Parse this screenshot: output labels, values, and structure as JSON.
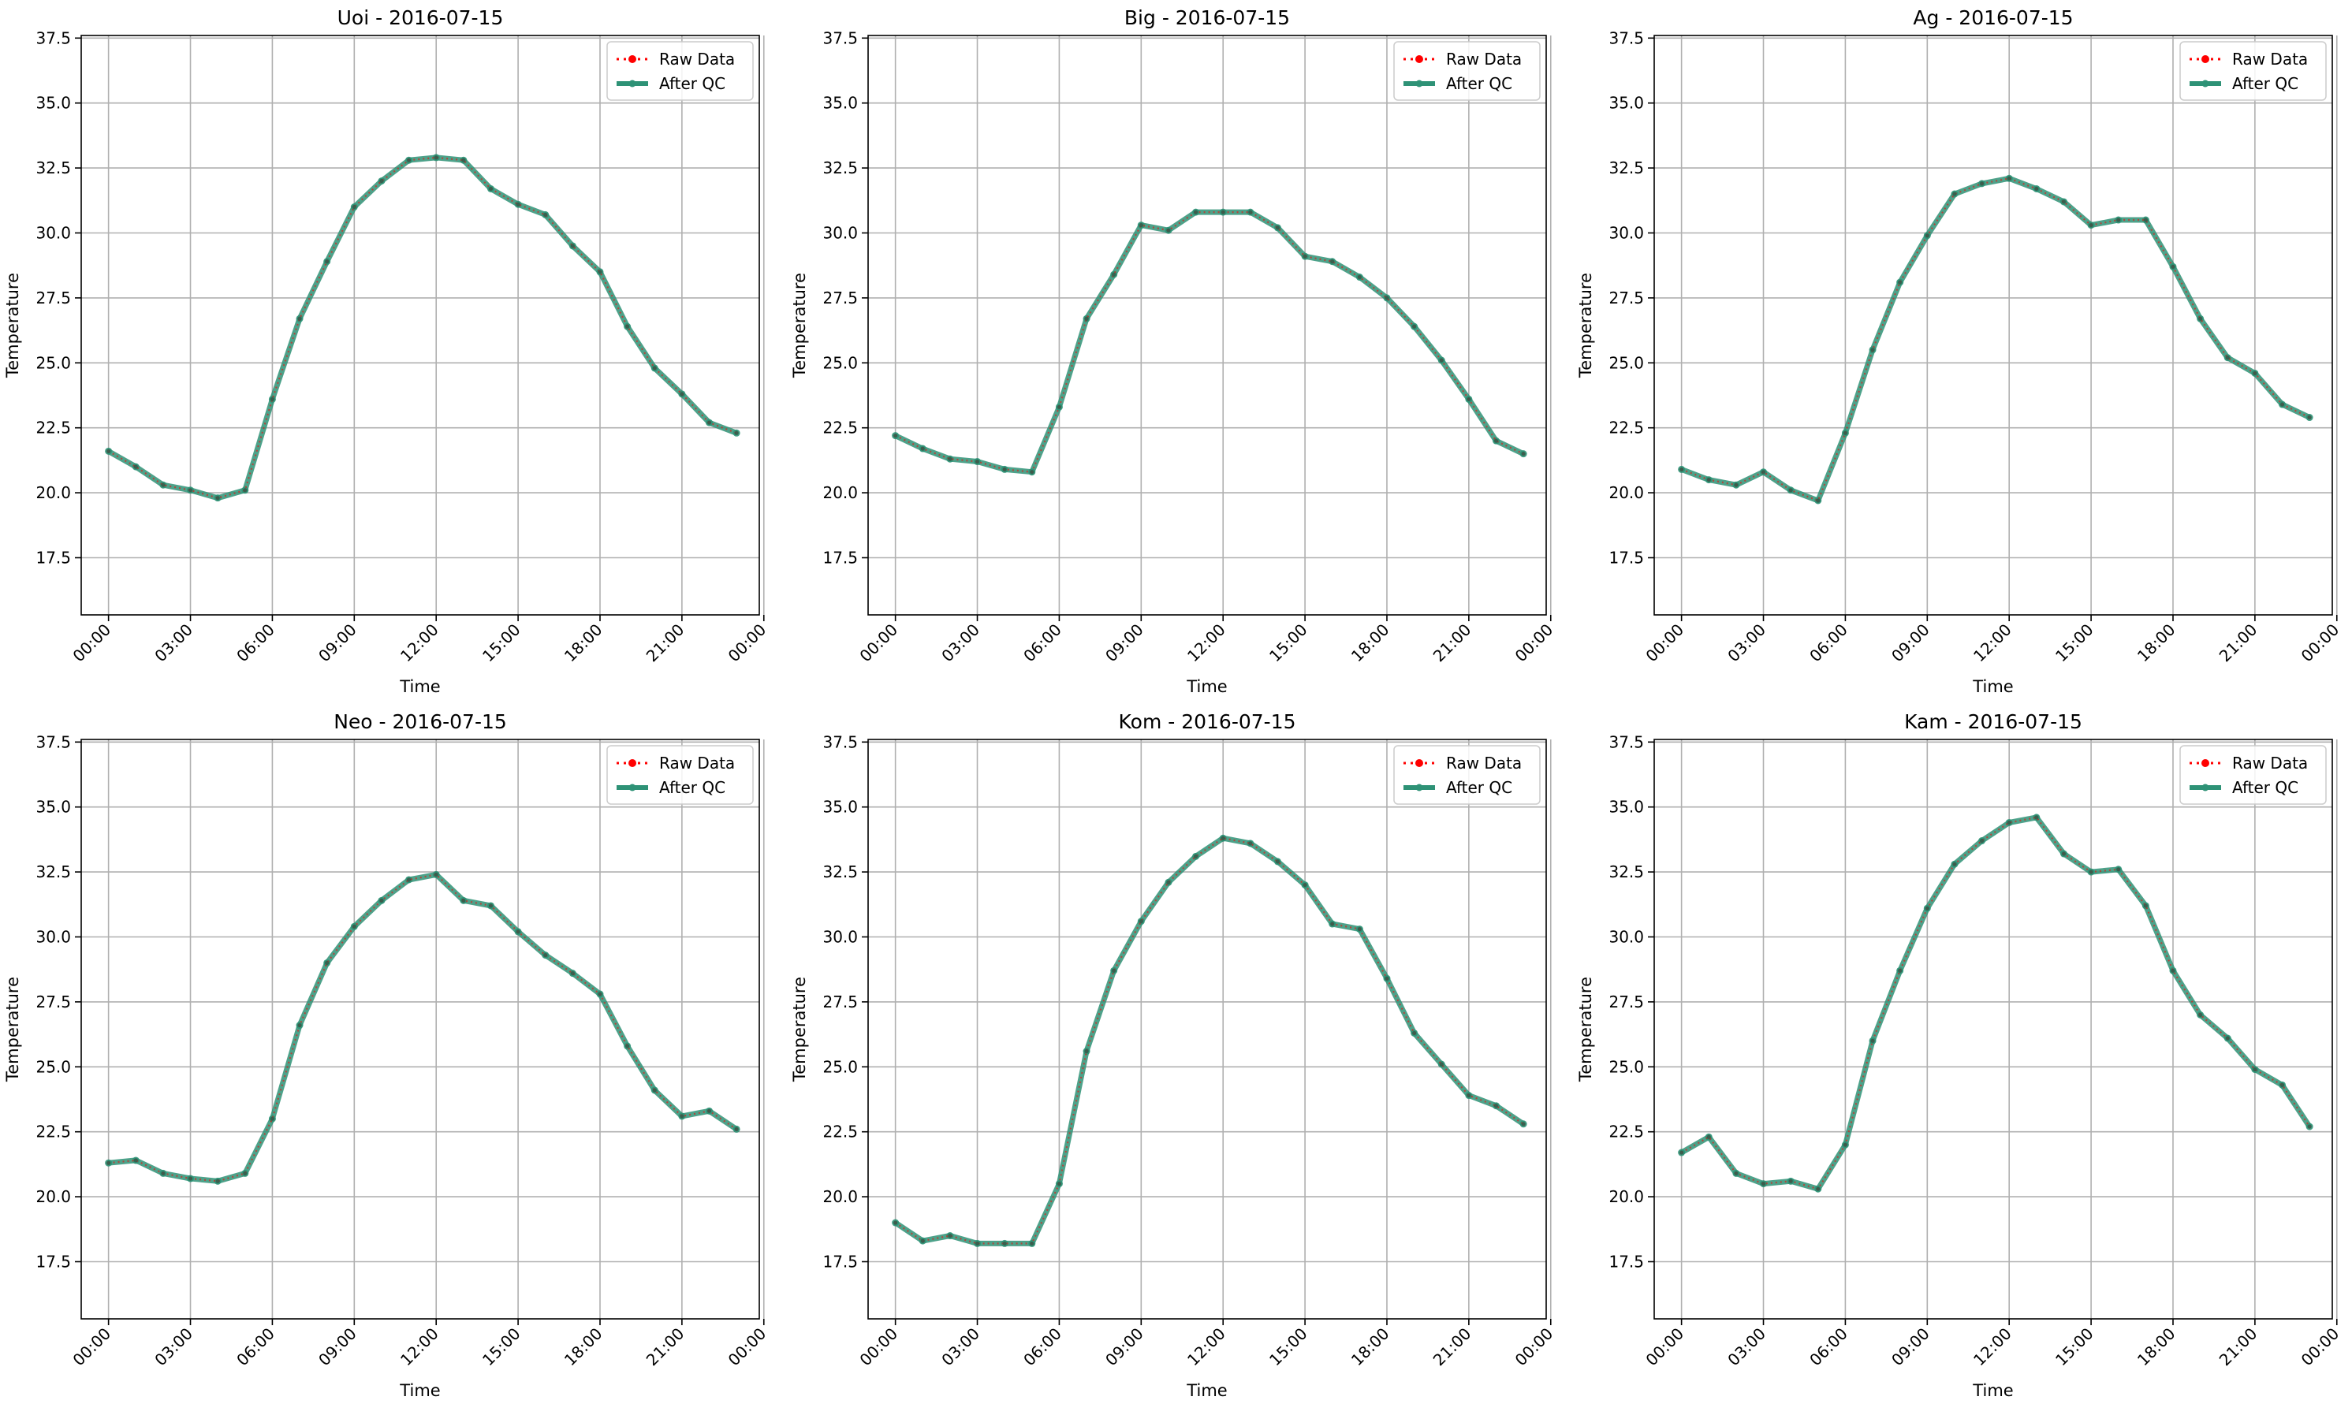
{
  "figure": {
    "legend": {
      "raw_label": "Raw Data",
      "qc_label": "After QC",
      "placement": "upper right"
    },
    "colors": {
      "raw": "#ff0000",
      "qc": "#2e9276",
      "grid": "#b0b0b0",
      "axes": "#000000"
    }
  },
  "chart_data": [
    {
      "type": "line",
      "title": "Uoi - 2016-07-15",
      "xlabel": "Time",
      "ylabel": "Temperature",
      "xlim": [
        "23:00 (2016-07-14)",
        "23:50"
      ],
      "ylim": [
        15.3,
        37.6
      ],
      "x_ticks": [
        "00:00",
        "03:00",
        "06:00",
        "09:00",
        "12:00",
        "15:00",
        "18:00",
        "21:00",
        "00:00"
      ],
      "y_ticks": [
        "17.5",
        "20.0",
        "22.5",
        "25.0",
        "27.5",
        "30.0",
        "32.5",
        "35.0",
        "37.5"
      ],
      "grid": true,
      "x": [
        "00:00",
        "01:00",
        "02:00",
        "03:00",
        "04:00",
        "05:00",
        "06:00",
        "07:00",
        "08:00",
        "09:00",
        "10:00",
        "11:00",
        "12:00",
        "13:00",
        "14:00",
        "15:00",
        "16:00",
        "17:00",
        "18:00",
        "19:00",
        "20:00",
        "21:00",
        "22:00",
        "23:00"
      ],
      "series": [
        {
          "name": "Raw Data",
          "values": [
            21.6,
            21.0,
            20.3,
            20.1,
            19.8,
            20.1,
            23.6,
            26.7,
            28.9,
            31.0,
            32.0,
            32.8,
            32.9,
            32.8,
            31.7,
            31.1,
            30.7,
            29.5,
            28.5,
            26.4,
            24.8,
            23.8,
            22.7,
            22.3
          ]
        },
        {
          "name": "After QC",
          "values": [
            21.6,
            21.0,
            20.3,
            20.1,
            19.8,
            20.1,
            23.6,
            26.7,
            28.9,
            31.0,
            32.0,
            32.8,
            32.9,
            32.8,
            31.7,
            31.1,
            30.7,
            29.5,
            28.5,
            26.4,
            24.8,
            23.8,
            22.7,
            22.3
          ]
        }
      ]
    },
    {
      "type": "line",
      "title": "Big - 2016-07-15",
      "xlabel": "Time",
      "ylabel": "Temperature",
      "xlim": [
        "23:00 (2016-07-14)",
        "23:50"
      ],
      "ylim": [
        15.3,
        37.6
      ],
      "x_ticks": [
        "00:00",
        "03:00",
        "06:00",
        "09:00",
        "12:00",
        "15:00",
        "18:00",
        "21:00",
        "00:00"
      ],
      "y_ticks": [
        "17.5",
        "20.0",
        "22.5",
        "25.0",
        "27.5",
        "30.0",
        "32.5",
        "35.0",
        "37.5"
      ],
      "grid": true,
      "x": [
        "00:00",
        "01:00",
        "02:00",
        "03:00",
        "04:00",
        "05:00",
        "06:00",
        "07:00",
        "08:00",
        "09:00",
        "10:00",
        "11:00",
        "12:00",
        "13:00",
        "14:00",
        "15:00",
        "16:00",
        "17:00",
        "18:00",
        "19:00",
        "20:00",
        "21:00",
        "22:00",
        "23:00"
      ],
      "series": [
        {
          "name": "Raw Data",
          "values": [
            22.2,
            21.7,
            21.3,
            21.2,
            20.9,
            20.8,
            23.3,
            26.7,
            28.4,
            30.3,
            30.1,
            30.8,
            30.8,
            30.8,
            30.2,
            29.1,
            28.9,
            28.3,
            27.5,
            26.4,
            25.1,
            23.6,
            22.0,
            21.5
          ]
        },
        {
          "name": "After QC",
          "values": [
            22.2,
            21.7,
            21.3,
            21.2,
            20.9,
            20.8,
            23.3,
            26.7,
            28.4,
            30.3,
            30.1,
            30.8,
            30.8,
            30.8,
            30.2,
            29.1,
            28.9,
            28.3,
            27.5,
            26.4,
            25.1,
            23.6,
            22.0,
            21.5
          ]
        }
      ]
    },
    {
      "type": "line",
      "title": "Ag - 2016-07-15",
      "xlabel": "Time",
      "ylabel": "Temperature",
      "xlim": [
        "23:00 (2016-07-14)",
        "23:50"
      ],
      "ylim": [
        15.3,
        37.6
      ],
      "x_ticks": [
        "00:00",
        "03:00",
        "06:00",
        "09:00",
        "12:00",
        "15:00",
        "18:00",
        "21:00",
        "00:00"
      ],
      "y_ticks": [
        "17.5",
        "20.0",
        "22.5",
        "25.0",
        "27.5",
        "30.0",
        "32.5",
        "35.0",
        "37.5"
      ],
      "grid": true,
      "x": [
        "00:00",
        "01:00",
        "02:00",
        "03:00",
        "04:00",
        "05:00",
        "06:00",
        "07:00",
        "08:00",
        "09:00",
        "10:00",
        "11:00",
        "12:00",
        "13:00",
        "14:00",
        "15:00",
        "16:00",
        "17:00",
        "18:00",
        "19:00",
        "20:00",
        "21:00",
        "22:00",
        "23:00"
      ],
      "series": [
        {
          "name": "Raw Data",
          "values": [
            20.9,
            20.5,
            20.3,
            20.8,
            20.1,
            19.7,
            22.3,
            25.5,
            28.1,
            29.9,
            31.5,
            31.9,
            32.1,
            31.7,
            31.2,
            30.3,
            30.5,
            30.5,
            28.7,
            26.7,
            25.2,
            24.6,
            23.4,
            22.9
          ]
        },
        {
          "name": "After QC",
          "values": [
            20.9,
            20.5,
            20.3,
            20.8,
            20.1,
            19.7,
            22.3,
            25.5,
            28.1,
            29.9,
            31.5,
            31.9,
            32.1,
            31.7,
            31.2,
            30.3,
            30.5,
            30.5,
            28.7,
            26.7,
            25.2,
            24.6,
            23.4,
            22.9
          ]
        }
      ]
    },
    {
      "type": "line",
      "title": "Neo - 2016-07-15",
      "xlabel": "Time",
      "ylabel": "Temperature",
      "xlim": [
        "23:00 (2016-07-14)",
        "23:50"
      ],
      "ylim": [
        15.3,
        37.6
      ],
      "x_ticks": [
        "00:00",
        "03:00",
        "06:00",
        "09:00",
        "12:00",
        "15:00",
        "18:00",
        "21:00",
        "00:00"
      ],
      "y_ticks": [
        "17.5",
        "20.0",
        "22.5",
        "25.0",
        "27.5",
        "30.0",
        "32.5",
        "35.0",
        "37.5"
      ],
      "grid": true,
      "x": [
        "00:00",
        "01:00",
        "02:00",
        "03:00",
        "04:00",
        "05:00",
        "06:00",
        "07:00",
        "08:00",
        "09:00",
        "10:00",
        "11:00",
        "12:00",
        "13:00",
        "14:00",
        "15:00",
        "16:00",
        "17:00",
        "18:00",
        "19:00",
        "20:00",
        "21:00",
        "22:00",
        "23:00"
      ],
      "series": [
        {
          "name": "Raw Data",
          "values": [
            21.3,
            21.4,
            20.9,
            20.7,
            20.6,
            20.9,
            23.0,
            26.6,
            29.0,
            30.4,
            31.4,
            32.2,
            32.4,
            31.4,
            31.2,
            30.2,
            29.3,
            28.6,
            27.8,
            25.8,
            24.1,
            23.1,
            23.3,
            22.6
          ]
        },
        {
          "name": "After QC",
          "values": [
            21.3,
            21.4,
            20.9,
            20.7,
            20.6,
            20.9,
            23.0,
            26.6,
            29.0,
            30.4,
            31.4,
            32.2,
            32.4,
            31.4,
            31.2,
            30.2,
            29.3,
            28.6,
            27.8,
            25.8,
            24.1,
            23.1,
            23.3,
            22.6
          ]
        }
      ]
    },
    {
      "type": "line",
      "title": "Kom - 2016-07-15",
      "xlabel": "Time",
      "ylabel": "Temperature",
      "xlim": [
        "23:00 (2016-07-14)",
        "23:50"
      ],
      "ylim": [
        15.3,
        37.6
      ],
      "x_ticks": [
        "00:00",
        "03:00",
        "06:00",
        "09:00",
        "12:00",
        "15:00",
        "18:00",
        "21:00",
        "00:00"
      ],
      "y_ticks": [
        "17.5",
        "20.0",
        "22.5",
        "25.0",
        "27.5",
        "30.0",
        "32.5",
        "35.0",
        "37.5"
      ],
      "grid": true,
      "x": [
        "00:00",
        "01:00",
        "02:00",
        "03:00",
        "04:00",
        "05:00",
        "06:00",
        "07:00",
        "08:00",
        "09:00",
        "10:00",
        "11:00",
        "12:00",
        "13:00",
        "14:00",
        "15:00",
        "16:00",
        "17:00",
        "18:00",
        "19:00",
        "20:00",
        "21:00",
        "22:00",
        "23:00"
      ],
      "series": [
        {
          "name": "Raw Data",
          "values": [
            19.0,
            18.3,
            18.5,
            18.2,
            18.2,
            18.2,
            20.5,
            25.6,
            28.7,
            30.6,
            32.1,
            33.1,
            33.8,
            33.6,
            32.9,
            32.0,
            30.5,
            30.3,
            28.4,
            26.3,
            25.1,
            23.9,
            23.5,
            22.8
          ]
        },
        {
          "name": "After QC",
          "values": [
            19.0,
            18.3,
            18.5,
            18.2,
            18.2,
            18.2,
            20.5,
            25.6,
            28.7,
            30.6,
            32.1,
            33.1,
            33.8,
            33.6,
            32.9,
            32.0,
            30.5,
            30.3,
            28.4,
            26.3,
            25.1,
            23.9,
            23.5,
            22.8
          ]
        }
      ]
    },
    {
      "type": "line",
      "title": "Kam - 2016-07-15",
      "xlabel": "Time",
      "ylabel": "Temperature",
      "xlim": [
        "23:00 (2016-07-14)",
        "23:50"
      ],
      "ylim": [
        15.3,
        37.6
      ],
      "x_ticks": [
        "00:00",
        "03:00",
        "06:00",
        "09:00",
        "12:00",
        "15:00",
        "18:00",
        "21:00",
        "00:00"
      ],
      "y_ticks": [
        "17.5",
        "20.0",
        "22.5",
        "25.0",
        "27.5",
        "30.0",
        "32.5",
        "35.0",
        "37.5"
      ],
      "grid": true,
      "x": [
        "00:00",
        "01:00",
        "02:00",
        "03:00",
        "04:00",
        "05:00",
        "06:00",
        "07:00",
        "08:00",
        "09:00",
        "10:00",
        "11:00",
        "12:00",
        "13:00",
        "14:00",
        "15:00",
        "16:00",
        "17:00",
        "18:00",
        "19:00",
        "20:00",
        "21:00",
        "22:00",
        "23:00"
      ],
      "series": [
        {
          "name": "Raw Data",
          "values": [
            21.7,
            22.3,
            20.9,
            20.5,
            20.6,
            20.3,
            22.0,
            26.0,
            28.7,
            31.1,
            32.8,
            33.7,
            34.4,
            34.6,
            33.2,
            32.5,
            32.6,
            31.2,
            28.7,
            27.0,
            26.1,
            24.9,
            24.3,
            22.7
          ]
        },
        {
          "name": "After QC",
          "values": [
            21.7,
            22.3,
            20.9,
            20.5,
            20.6,
            20.3,
            22.0,
            26.0,
            28.7,
            31.1,
            32.8,
            33.7,
            34.4,
            34.6,
            33.2,
            32.5,
            32.6,
            31.2,
            28.7,
            27.0,
            26.1,
            24.9,
            24.3,
            22.7
          ]
        }
      ]
    }
  ]
}
